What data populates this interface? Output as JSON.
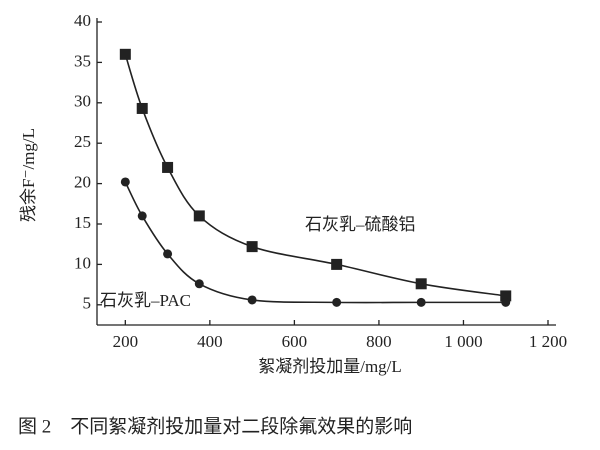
{
  "chart_data": {
    "type": "line",
    "x_label": "絮凝剂投加量/mg/L",
    "y_label": "残余F⁻/mg/L",
    "caption": "图 2　不同絮凝剂投加量对二段除氟效果的影响",
    "series": [
      {
        "name": "石灰乳–硫酸铝",
        "color": "#222222",
        "marker": "square",
        "x": [
          200,
          240,
          300,
          375,
          500,
          700,
          900,
          1100
        ],
        "values": [
          36,
          29.3,
          22,
          16,
          12.2,
          10,
          7.6,
          6.1
        ]
      },
      {
        "name": "石灰乳–PAC",
        "color": "#222222",
        "marker": "circle",
        "x": [
          200,
          240,
          300,
          375,
          500,
          700,
          900,
          1100
        ],
        "values": [
          20.2,
          16,
          11.3,
          7.6,
          5.6,
          5.3,
          5.3,
          5.3
        ]
      }
    ],
    "xlim": [
      133,
      1200
    ],
    "xticks": [
      200,
      400,
      600,
      800,
      {
        "value": 1000,
        "label": "1 000"
      },
      {
        "value": 1200,
        "label": "1 200"
      }
    ],
    "ylim": [
      2.5,
      40
    ],
    "yticks": [
      5,
      10,
      15,
      20,
      25,
      30,
      35,
      40
    ]
  }
}
